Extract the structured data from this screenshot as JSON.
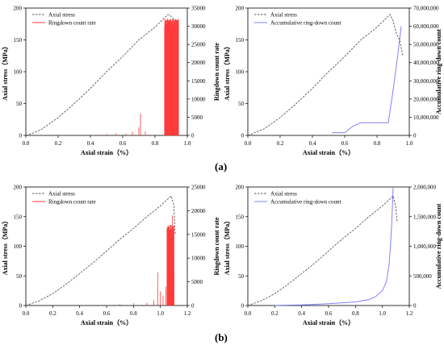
{
  "row_labels": {
    "a": "(a)",
    "b": "(b)"
  },
  "colors": {
    "stress": "#555555",
    "rate": "#ff3b3b",
    "accum": "#8080ff"
  },
  "chart_data": [
    {
      "id": "a-left",
      "type": "line",
      "xlabel": "Axial strain（%）",
      "ylabel": "Axial stress（MPa）",
      "y2label": "Ringdown count rate",
      "xlim": [
        0,
        1.0
      ],
      "ylim": [
        0,
        200
      ],
      "y2lim": [
        0,
        35000
      ],
      "xticks": [
        "0.0",
        "0.2",
        "0.4",
        "0.6",
        "0.8",
        "1.0"
      ],
      "yticks": [
        "0",
        "50",
        "100",
        "150",
        "200"
      ],
      "y2ticks": [
        "0",
        "5000",
        "10000",
        "15000",
        "20000",
        "25000",
        "30000",
        "35000"
      ],
      "legend": [
        "Axial stress",
        "Ringdown count rate"
      ],
      "stress": {
        "x": [
          0,
          0.05,
          0.1,
          0.2,
          0.3,
          0.4,
          0.5,
          0.6,
          0.7,
          0.8,
          0.88,
          0.9,
          0.92,
          0.94
        ],
        "y": [
          0,
          4,
          10,
          28,
          50,
          74,
          100,
          124,
          150,
          170,
          190,
          187,
          182,
          177
        ]
      },
      "rate": {
        "spikes": [
          [
            0.5,
            400
          ],
          [
            0.56,
            600
          ],
          [
            0.62,
            500
          ],
          [
            0.66,
            1000
          ],
          [
            0.7,
            2200
          ],
          [
            0.71,
            6000
          ],
          [
            0.74,
            1200
          ]
        ],
        "dense_start": 0.86,
        "dense_end": 0.945,
        "dense_max": 32000,
        "dense_min": 28000
      }
    },
    {
      "id": "a-right",
      "type": "line",
      "xlabel": "Axial strain（%）",
      "ylabel": "Axial stress（MPa）",
      "y2label": "Accumulative ring-down count",
      "xlim": [
        0,
        1.0
      ],
      "ylim": [
        0,
        200
      ],
      "y2lim": [
        0,
        70000000
      ],
      "xticks": [
        "0.0",
        "0.2",
        "0.4",
        "0.6",
        "0.8",
        "1.0"
      ],
      "yticks": [
        "0",
        "50",
        "100",
        "150",
        "200"
      ],
      "y2ticks": [
        "0",
        "10,000,000",
        "20,000,000",
        "30,000,000",
        "40,000,000",
        "50,000,000",
        "60,000,000",
        "70,000,000"
      ],
      "legend": [
        "Axial stress",
        "Accumulative ring-down count"
      ],
      "stress": {
        "x": [
          0,
          0.1,
          0.2,
          0.3,
          0.4,
          0.5,
          0.6,
          0.7,
          0.8,
          0.88,
          0.9,
          0.92,
          0.94,
          0.96
        ],
        "y": [
          0,
          10,
          28,
          50,
          74,
          100,
          124,
          150,
          170,
          190,
          180,
          160,
          150,
          125
        ]
      },
      "accum": {
        "x": [
          0.52,
          0.6,
          0.65,
          0.7,
          0.85,
          0.87,
          0.9,
          0.93,
          0.95
        ],
        "y": [
          1500000,
          1500000,
          5000000,
          7000000,
          7000000,
          7000000,
          25000000,
          45000000,
          60000000
        ]
      }
    },
    {
      "id": "b-left",
      "type": "line",
      "xlabel": "Axial strain（%）",
      "ylabel": "Axial stress（MPa）",
      "y2label": "Ringdown count rate",
      "xlim": [
        0,
        1.2
      ],
      "ylim": [
        0,
        200
      ],
      "y2lim": [
        0,
        25000
      ],
      "xticks": [
        "0.0",
        "0.2",
        "0.4",
        "0.6",
        "0.8",
        "1.0",
        "1.2"
      ],
      "yticks": [
        "0",
        "50",
        "100",
        "150",
        "200"
      ],
      "y2ticks": [
        "0",
        "5000",
        "10000",
        "15000",
        "20000",
        "25000"
      ],
      "legend": [
        "Axial stress",
        "Ringdown count rate"
      ],
      "stress": {
        "x": [
          0,
          0.1,
          0.2,
          0.3,
          0.4,
          0.5,
          0.6,
          0.7,
          0.8,
          0.9,
          1.0,
          1.08,
          1.1,
          1.11
        ],
        "y": [
          0,
          8,
          20,
          36,
          54,
          72,
          92,
          112,
          130,
          150,
          168,
          185,
          170,
          120
        ]
      },
      "rate": {
        "spikes": [
          [
            0.7,
            300
          ],
          [
            0.8,
            500
          ],
          [
            0.9,
            600
          ],
          [
            0.95,
            1200
          ],
          [
            0.98,
            7000
          ],
          [
            1.0,
            3000
          ],
          [
            1.02,
            2000
          ],
          [
            1.04,
            4000
          ],
          [
            1.06,
            9000
          ],
          [
            1.08,
            15000
          ],
          [
            1.09,
            19000
          ],
          [
            1.1,
            16000
          ]
        ],
        "dense_start": 1.05,
        "dense_end": 1.1,
        "dense_max": 17000,
        "dense_min": 2000
      }
    },
    {
      "id": "b-right",
      "type": "line",
      "xlabel": "Axial strain（%）",
      "ylabel": "Axial stress（MPa）",
      "y2label": "Accumulative ring-down count",
      "xlim": [
        0,
        1.2
      ],
      "ylim": [
        0,
        200
      ],
      "y2lim": [
        0,
        2000000
      ],
      "xticks": [
        "0.0",
        "0.2",
        "0.4",
        "0.6",
        "0.8",
        "1.0",
        "1.2"
      ],
      "yticks": [
        "0",
        "50",
        "100",
        "150",
        "200"
      ],
      "y2ticks": [
        "0",
        "500,000",
        "1,000,000",
        "1,500,000",
        "2,000,000"
      ],
      "legend": [
        "Axial stress",
        "Accumulative ring-down count"
      ],
      "stress": {
        "x": [
          0,
          0.1,
          0.2,
          0.3,
          0.4,
          0.5,
          0.6,
          0.7,
          0.8,
          0.9,
          1.0,
          1.08,
          1.1,
          1.11
        ],
        "y": [
          0,
          8,
          20,
          36,
          54,
          72,
          92,
          112,
          130,
          150,
          168,
          185,
          165,
          140
        ]
      },
      "accum": {
        "x": [
          0.2,
          0.4,
          0.6,
          0.8,
          0.9,
          0.95,
          1.0,
          1.03,
          1.05,
          1.06,
          1.07,
          1.08
        ],
        "y": [
          2000,
          10000,
          30000,
          60000,
          100000,
          150000,
          250000,
          400000,
          700000,
          1000000,
          1400000,
          2000000
        ]
      }
    }
  ]
}
